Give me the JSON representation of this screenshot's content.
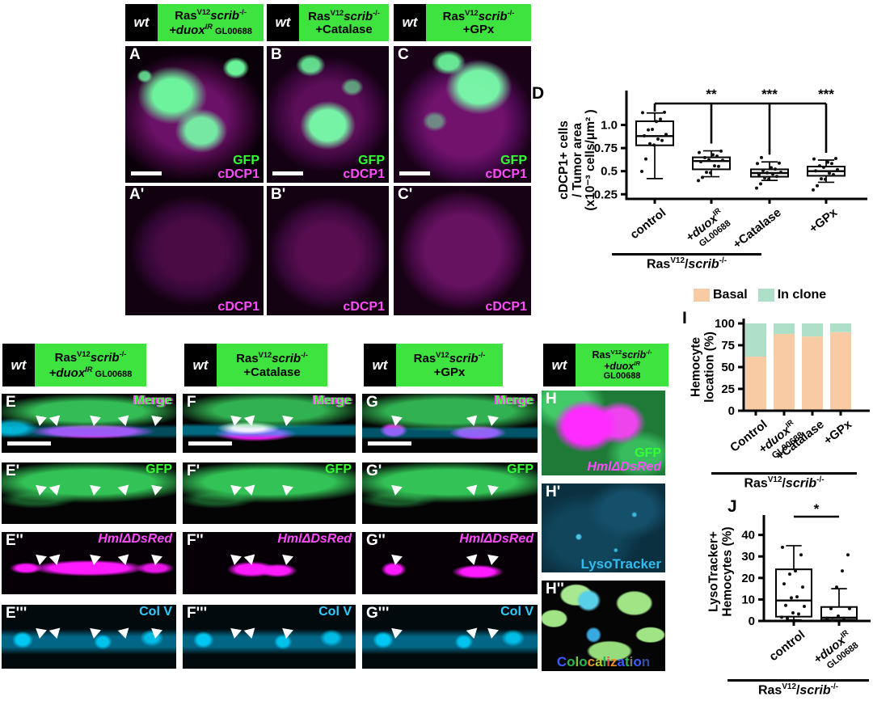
{
  "genotype": {
    "wt": "wt",
    "ras": "Ras",
    "v12": "V12",
    "scrib": "scrib",
    "ko": "-/-",
    "slash": "/"
  },
  "treatments": {
    "duox": {
      "main": "+duox",
      "sup": "IR",
      "suffix": " GL00688",
      "line2": "GL00688"
    },
    "catalase": {
      "main": "+Catalase"
    },
    "gpx": {
      "main": "+GPx"
    }
  },
  "labels": {
    "gfp": "GFP",
    "cdcp1": "cDCP1",
    "merge": "Merge",
    "hml": "HmlΔDsRed",
    "colv": "Col V",
    "lyso": "LysoTracker",
    "coloc": "Colocalization"
  },
  "panel_letters": {
    "A": "A",
    "Ap": "A'",
    "B": "B",
    "Bp": "B'",
    "C": "C",
    "Cp": "C'",
    "D": "D",
    "E": "E",
    "Ep": "E'",
    "Epp": "E''",
    "Eppp": "E'''",
    "F": "F",
    "Fp": "F'",
    "Fpp": "F''",
    "Fppp": "F'''",
    "G": "G",
    "Gp": "G'",
    "Gpp": "G''",
    "Gppp": "G'''",
    "H": "H",
    "Hp": "H'",
    "Hpp": "H''",
    "I": "I",
    "J": "J"
  },
  "colors": {
    "header_green": "#3FE33F",
    "gfp_green": "#33FF33",
    "magenta": "#FF4DFF",
    "cyan": "#33CCFF",
    "lyso_cyan": "#33BBEE",
    "basal": "#F8CBA4",
    "in_clone": "#AEDFC9",
    "coloc_palette": [
      "#3B5BFF",
      "#2DB84D",
      "#7AC22E",
      "#2DB84D",
      "#E8902A",
      "#B5CC2E",
      "#2DB84D",
      "#E05050",
      "#E8902A",
      "#3B5BFF",
      "#2DB84D",
      "#777777",
      "#3B5BFF",
      "#334C99"
    ]
  },
  "chart_data": [
    {
      "id": "chart_d",
      "type": "box",
      "ylabel_lines": [
        "cDCP1+ cells",
        "/ Tumor area",
        "(x10⁻³ cells/μm² )"
      ],
      "yticks": [
        0.25,
        0.5,
        0.75,
        1.0
      ],
      "ytick_labels": [
        "0.25",
        "0.5",
        "0.75",
        "1.0"
      ],
      "ylim": [
        0.2,
        1.32
      ],
      "categories": [
        {
          "label": "control"
        },
        {
          "label": "+duox",
          "sup": "IR",
          "line2": "GL00688",
          "italic": true
        },
        {
          "label": "+Catalase"
        },
        {
          "label": "+GPx"
        }
      ],
      "group_label": "RasV12/scrib-/-",
      "boxes": [
        {
          "whislo": 0.42,
          "q1": 0.78,
          "med": 0.88,
          "q3": 1.04,
          "whishi": 1.13,
          "points": [
            0.48,
            0.65,
            0.78,
            0.8,
            0.83,
            0.85,
            0.88,
            0.9,
            0.93,
            0.97,
            1.02,
            1.08,
            1.12,
            1.15
          ]
        },
        {
          "whislo": 0.44,
          "q1": 0.52,
          "med": 0.61,
          "q3": 0.65,
          "whishi": 0.72,
          "points": [
            0.38,
            0.45,
            0.47,
            0.5,
            0.54,
            0.57,
            0.6,
            0.62,
            0.63,
            0.64,
            0.66,
            0.68,
            0.7,
            0.72
          ]
        },
        {
          "whislo": 0.4,
          "q1": 0.44,
          "med": 0.48,
          "q3": 0.52,
          "whishi": 0.6,
          "points": [
            0.3,
            0.38,
            0.41,
            0.43,
            0.45,
            0.46,
            0.47,
            0.48,
            0.49,
            0.5,
            0.52,
            0.54,
            0.57,
            0.6,
            0.63
          ]
        },
        {
          "whislo": 0.38,
          "q1": 0.45,
          "med": 0.5,
          "q3": 0.55,
          "whishi": 0.62,
          "points": [
            0.28,
            0.36,
            0.4,
            0.43,
            0.46,
            0.48,
            0.5,
            0.52,
            0.54,
            0.56,
            0.58,
            0.6,
            0.62,
            0.65
          ]
        }
      ],
      "significance": {
        "from": 0,
        "stars": [
          {
            "cat": 1,
            "label": "**"
          },
          {
            "cat": 2,
            "label": "***"
          },
          {
            "cat": 3,
            "label": "***"
          }
        ]
      }
    },
    {
      "id": "chart_i",
      "type": "bar",
      "ylabel_lines": [
        "Hemocyte",
        "location (%)"
      ],
      "yticks": [
        0,
        25,
        50,
        75,
        100
      ],
      "ytick_labels": [
        "0",
        "25",
        "50",
        "75",
        "100"
      ],
      "ylim": [
        0,
        100
      ],
      "categories": [
        {
          "label": "Control"
        },
        {
          "label": "+duox",
          "sup": "IR",
          "line2": "GL00688",
          "italic": true
        },
        {
          "label": "+Catalase"
        },
        {
          "label": "+GPx"
        }
      ],
      "group_label": "RasV12/scrib-/-",
      "series": [
        {
          "name": "Basal",
          "color": "#F8CBA4",
          "values": [
            62,
            88,
            85,
            90
          ]
        },
        {
          "name": "In clone",
          "color": "#AEDFC9",
          "values": [
            38,
            12,
            15,
            10
          ]
        }
      ]
    },
    {
      "id": "chart_j",
      "type": "box",
      "ylabel_lines": [
        "LysoTracker+",
        "Hemocytes (%)"
      ],
      "yticks": [
        0,
        10,
        20,
        30,
        40
      ],
      "ytick_labels": [
        "0",
        "10",
        "20",
        "30",
        "40"
      ],
      "ylim": [
        0,
        47
      ],
      "categories": [
        {
          "label": "control"
        },
        {
          "label": "+duox",
          "sup": "IR",
          "line2": "GL00688",
          "italic": true
        }
      ],
      "group_label": "RasV12/scrib-/-",
      "boxes": [
        {
          "whislo": 0.5,
          "q1": 2,
          "med": 9.5,
          "q3": 24,
          "whishi": 35,
          "points": [
            1,
            2,
            3,
            4,
            6,
            8,
            10,
            12,
            15,
            18,
            21,
            24,
            30,
            35
          ]
        },
        {
          "whislo": 0,
          "q1": 0.5,
          "med": 1.5,
          "q3": 6.5,
          "whishi": 15,
          "points": [
            0.5,
            1,
            1.5,
            2,
            5,
            6.5,
            15,
            24,
            30
          ]
        }
      ],
      "significance": {
        "pair": [
          0,
          1
        ],
        "label": "*"
      }
    }
  ]
}
